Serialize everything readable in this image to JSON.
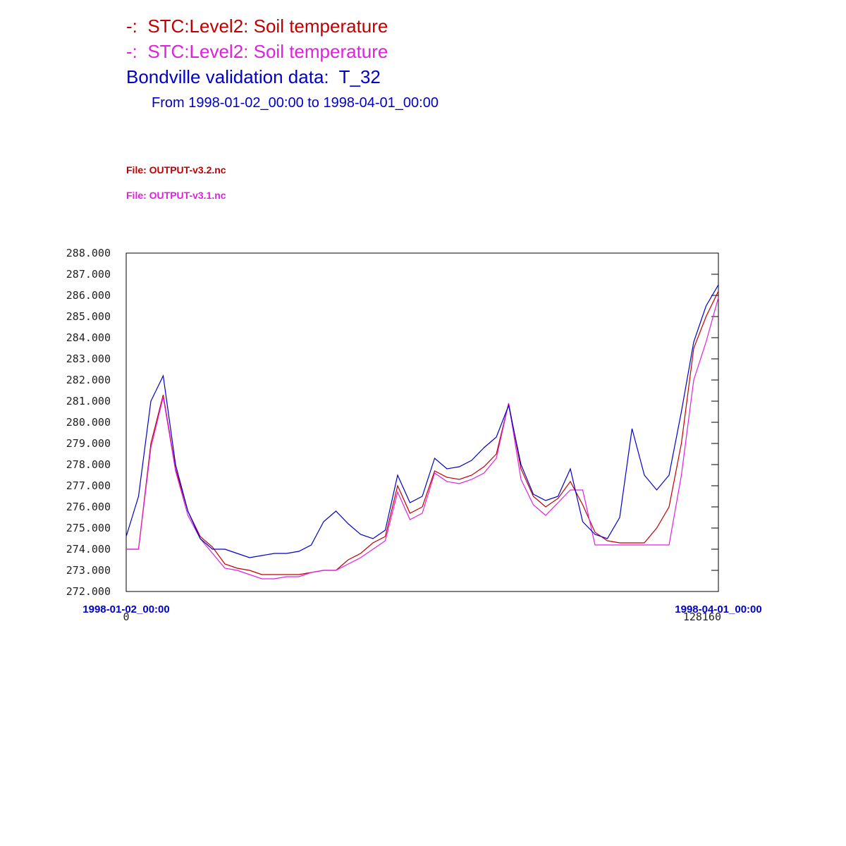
{
  "chart_data": {
    "type": "line",
    "subtitle": "From 1998-01-02_00:00 to 1998-04-01_00:00",
    "x": [
      0,
      2670,
      5340,
      8010,
      10680,
      13350,
      16020,
      18690,
      21360,
      24030,
      26700,
      29370,
      32040,
      34710,
      37380,
      40050,
      42720,
      45390,
      48060,
      50730,
      53400,
      56070,
      58740,
      61410,
      64080,
      66750,
      69420,
      72090,
      74760,
      77430,
      80100,
      82770,
      85440,
      88110,
      90780,
      93450,
      96120,
      98790,
      101460,
      104130,
      106800,
      109470,
      112140,
      114810,
      117480,
      120150,
      122820,
      125490,
      128160
    ],
    "series": [
      {
        "name": "-:  STC:Level2: Soil temperature",
        "file": "File: OUTPUT-v3.2.nc",
        "color": "#c00000",
        "values": [
          274.0,
          274.0,
          279.0,
          281.3,
          277.8,
          275.8,
          274.6,
          274.1,
          273.3,
          273.1,
          273.0,
          272.8,
          272.8,
          272.8,
          272.8,
          272.9,
          273.0,
          273.0,
          273.5,
          273.8,
          274.3,
          274.6,
          277.0,
          275.7,
          276.0,
          277.7,
          277.4,
          277.3,
          277.5,
          277.9,
          278.5,
          280.9,
          277.8,
          276.5,
          276.0,
          276.4,
          277.2,
          276.1,
          274.8,
          274.4,
          274.3,
          274.3,
          274.3,
          275.0,
          276.0,
          279.0,
          283.5,
          285.0,
          286.2
        ]
      },
      {
        "name": "-:  STC:Level2: Soil temperature",
        "file": "File: OUTPUT-v3.1.nc",
        "color": "#e020e0",
        "values": [
          274.0,
          274.0,
          278.8,
          281.2,
          277.7,
          275.6,
          274.5,
          273.8,
          273.1,
          273.0,
          272.8,
          272.6,
          272.6,
          272.7,
          272.7,
          272.9,
          273.0,
          273.0,
          273.3,
          273.6,
          274.0,
          274.4,
          276.7,
          275.4,
          275.7,
          277.6,
          277.2,
          277.1,
          277.3,
          277.6,
          278.3,
          280.9,
          277.3,
          276.1,
          275.6,
          276.2,
          276.8,
          276.8,
          274.2,
          274.2,
          274.2,
          274.2,
          274.2,
          274.2,
          274.2,
          277.5,
          282.0,
          283.8,
          285.9
        ]
      },
      {
        "name": "Bondville validation data:  T_32",
        "color": "#0000cc",
        "values": [
          274.6,
          276.5,
          281.0,
          282.2,
          278.0,
          275.8,
          274.5,
          274.0,
          274.0,
          273.8,
          273.6,
          273.7,
          273.8,
          273.8,
          273.9,
          274.2,
          275.3,
          275.8,
          275.2,
          274.7,
          274.5,
          274.9,
          277.5,
          276.2,
          276.5,
          278.3,
          277.8,
          277.9,
          278.2,
          278.8,
          279.3,
          280.8,
          278.0,
          276.6,
          276.3,
          276.5,
          277.8,
          275.3,
          274.7,
          274.5,
          275.5,
          279.7,
          277.5,
          276.8,
          277.5,
          280.5,
          283.8,
          285.5,
          286.5
        ]
      }
    ],
    "xlim": [
      0,
      128160
    ],
    "xticks": [
      {
        "value": 0,
        "label": "1998-01-02_00:00"
      },
      {
        "value": 128160,
        "label": "1998-04-01_00:00"
      }
    ],
    "ylim": [
      272,
      288
    ],
    "yticks": [
      {
        "value": 272,
        "label": "272.000"
      },
      {
        "value": 273,
        "label": "273.000"
      },
      {
        "value": 274,
        "label": "274.000"
      },
      {
        "value": 275,
        "label": "275.000"
      },
      {
        "value": 276,
        "label": "276.000"
      },
      {
        "value": 277,
        "label": "277.000"
      },
      {
        "value": 278,
        "label": "278.000"
      },
      {
        "value": 279,
        "label": "279.000"
      },
      {
        "value": 280,
        "label": "280.000"
      },
      {
        "value": 281,
        "label": "281.000"
      },
      {
        "value": 282,
        "label": "282.000"
      },
      {
        "value": 283,
        "label": "283.000"
      },
      {
        "value": 284,
        "label": "284.000"
      },
      {
        "value": 285,
        "label": "285.000"
      },
      {
        "value": 286,
        "label": "286.000"
      },
      {
        "value": 287,
        "label": "287.000"
      },
      {
        "value": 288,
        "label": "288.000"
      }
    ],
    "grid": false
  }
}
